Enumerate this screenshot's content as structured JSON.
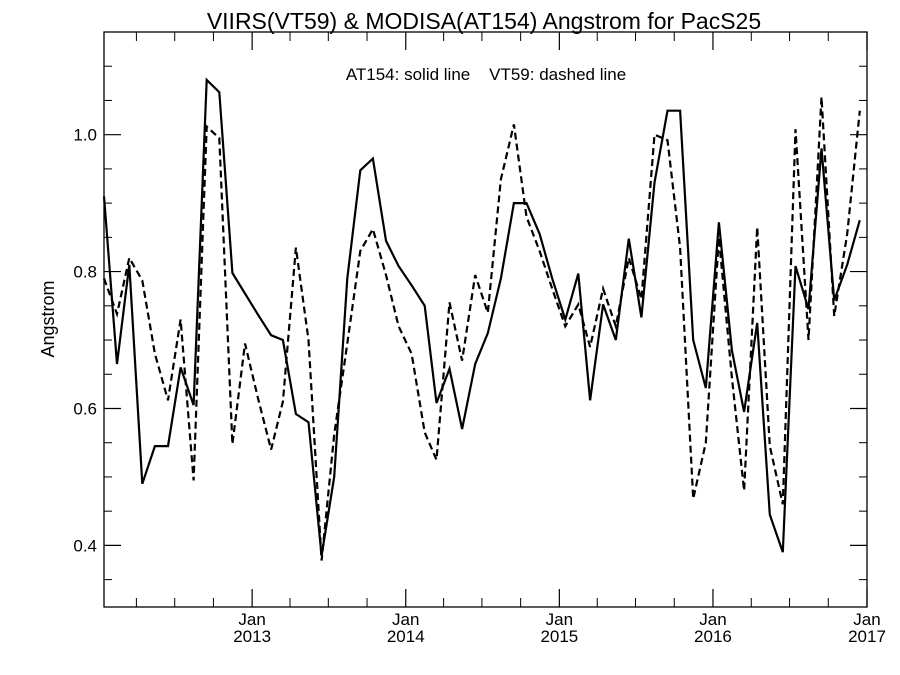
{
  "chart_data": {
    "type": "line",
    "title": "VIIRS(VT59) & MODISA(AT154)  Angstrom for PacS25",
    "annotation": "AT154: solid line    VT59: dashed line",
    "xlabel": "",
    "ylabel": "Angstrom",
    "xlim": [
      "2012-01-15",
      "2017-01-01"
    ],
    "ylim": [
      0.31,
      1.15
    ],
    "y_ticks": [
      0.4,
      0.6,
      0.8,
      1.0
    ],
    "y_tick_labels": [
      "0.4",
      "0.6",
      "0.8",
      "1.0"
    ],
    "x_ticks": [
      {
        "date": "2013-01-01",
        "line1": "Jan",
        "line2": "2013"
      },
      {
        "date": "2014-01-01",
        "line1": "Jan",
        "line2": "2014"
      },
      {
        "date": "2015-01-01",
        "line1": "Jan",
        "line2": "2015"
      },
      {
        "date": "2016-01-01",
        "line1": "Jan",
        "line2": "2016"
      },
      {
        "date": "2017-01-01",
        "line1": "Jan",
        "line2": "2017"
      }
    ],
    "grid": false,
    "series": [
      {
        "name": "AT154",
        "style": "solid",
        "color": "#000000",
        "points": [
          [
            "2012-01-15",
            0.91
          ],
          [
            "2012-02-15",
            0.665
          ],
          [
            "2012-03-15",
            0.81
          ],
          [
            "2012-04-15",
            0.49
          ],
          [
            "2012-05-15",
            0.545
          ],
          [
            "2012-06-15",
            0.545
          ],
          [
            "2012-07-15",
            0.66
          ],
          [
            "2012-08-15",
            0.605
          ],
          [
            "2012-09-15",
            1.08
          ],
          [
            "2012-10-15",
            1.062
          ],
          [
            "2012-11-15",
            0.798
          ],
          [
            "2012-12-15",
            0.768
          ],
          [
            "2013-01-15",
            0.737
          ],
          [
            "2013-02-15",
            0.707
          ],
          [
            "2013-03-15",
            0.7
          ],
          [
            "2013-04-15",
            0.592
          ],
          [
            "2013-05-15",
            0.58
          ],
          [
            "2013-06-15",
            0.385
          ],
          [
            "2013-07-15",
            0.5
          ],
          [
            "2013-08-15",
            0.79
          ],
          [
            "2013-09-15",
            0.948
          ],
          [
            "2013-10-15",
            0.965
          ],
          [
            "2013-11-15",
            0.845
          ],
          [
            "2013-12-15",
            0.808
          ],
          [
            "2014-01-15",
            0.78
          ],
          [
            "2014-02-15",
            0.75
          ],
          [
            "2014-03-15",
            0.608
          ],
          [
            "2014-04-15",
            0.658
          ],
          [
            "2014-05-15",
            0.57
          ],
          [
            "2014-06-15",
            0.665
          ],
          [
            "2014-07-15",
            0.71
          ],
          [
            "2014-08-15",
            0.79
          ],
          [
            "2014-09-15",
            0.9
          ],
          [
            "2014-10-15",
            0.9
          ],
          [
            "2014-11-15",
            0.855
          ],
          [
            "2014-12-15",
            0.79
          ],
          [
            "2015-01-15",
            0.73
          ],
          [
            "2015-02-15",
            0.797
          ],
          [
            "2015-03-15",
            0.612
          ],
          [
            "2015-04-15",
            0.752
          ],
          [
            "2015-05-15",
            0.7
          ],
          [
            "2015-06-15",
            0.848
          ],
          [
            "2015-07-15",
            0.733
          ],
          [
            "2015-08-15",
            0.93
          ],
          [
            "2015-09-15",
            1.035
          ],
          [
            "2015-10-15",
            1.035
          ],
          [
            "2015-11-15",
            0.7
          ],
          [
            "2015-12-15",
            0.63
          ],
          [
            "2016-01-15",
            0.872
          ],
          [
            "2016-02-15",
            0.685
          ],
          [
            "2016-03-15",
            0.595
          ],
          [
            "2016-04-15",
            0.725
          ],
          [
            "2016-05-15",
            0.445
          ],
          [
            "2016-06-15",
            0.39
          ],
          [
            "2016-07-15",
            0.808
          ],
          [
            "2016-08-15",
            0.745
          ],
          [
            "2016-09-15",
            0.98
          ],
          [
            "2016-10-15",
            0.758
          ],
          [
            "2016-11-15",
            0.81
          ],
          [
            "2016-12-15",
            0.875
          ]
        ]
      },
      {
        "name": "VT59",
        "style": "dashed",
        "color": "#000000",
        "points": [
          [
            "2012-01-15",
            0.79
          ],
          [
            "2012-02-15",
            0.738
          ],
          [
            "2012-03-15",
            0.82
          ],
          [
            "2012-04-15",
            0.787
          ],
          [
            "2012-05-15",
            0.68
          ],
          [
            "2012-06-15",
            0.612
          ],
          [
            "2012-07-15",
            0.73
          ],
          [
            "2012-08-15",
            0.495
          ],
          [
            "2012-09-15",
            1.012
          ],
          [
            "2012-10-15",
            0.995
          ],
          [
            "2012-11-15",
            0.548
          ],
          [
            "2012-12-15",
            0.695
          ],
          [
            "2013-01-15",
            0.615
          ],
          [
            "2013-02-15",
            0.54
          ],
          [
            "2013-03-15",
            0.61
          ],
          [
            "2013-04-15",
            0.835
          ],
          [
            "2013-05-15",
            0.7
          ],
          [
            "2013-06-15",
            0.378
          ],
          [
            "2013-07-15",
            0.562
          ],
          [
            "2013-08-15",
            0.695
          ],
          [
            "2013-09-15",
            0.83
          ],
          [
            "2013-10-15",
            0.862
          ],
          [
            "2013-11-15",
            0.795
          ],
          [
            "2013-12-15",
            0.72
          ],
          [
            "2014-01-15",
            0.68
          ],
          [
            "2014-02-15",
            0.565
          ],
          [
            "2014-03-15",
            0.525
          ],
          [
            "2014-04-15",
            0.755
          ],
          [
            "2014-05-15",
            0.67
          ],
          [
            "2014-06-15",
            0.795
          ],
          [
            "2014-07-15",
            0.74
          ],
          [
            "2014-08-15",
            0.935
          ],
          [
            "2014-09-15",
            1.015
          ],
          [
            "2014-10-15",
            0.88
          ],
          [
            "2014-11-15",
            0.83
          ],
          [
            "2014-12-15",
            0.775
          ],
          [
            "2015-01-15",
            0.72
          ],
          [
            "2015-02-15",
            0.752
          ],
          [
            "2015-03-15",
            0.69
          ],
          [
            "2015-04-15",
            0.775
          ],
          [
            "2015-05-15",
            0.72
          ],
          [
            "2015-06-15",
            0.82
          ],
          [
            "2015-07-15",
            0.76
          ],
          [
            "2015-08-15",
            1.0
          ],
          [
            "2015-09-15",
            0.992
          ],
          [
            "2015-10-15",
            0.835
          ],
          [
            "2015-11-15",
            0.468
          ],
          [
            "2015-12-15",
            0.55
          ],
          [
            "2016-01-15",
            0.85
          ],
          [
            "2016-02-15",
            0.645
          ],
          [
            "2016-03-15",
            0.48
          ],
          [
            "2016-04-15",
            0.865
          ],
          [
            "2016-05-15",
            0.545
          ],
          [
            "2016-06-15",
            0.46
          ],
          [
            "2016-07-15",
            1.008
          ],
          [
            "2016-08-15",
            0.7
          ],
          [
            "2016-09-15",
            1.055
          ],
          [
            "2016-10-15",
            0.735
          ],
          [
            "2016-11-15",
            0.855
          ],
          [
            "2016-12-15",
            1.035
          ]
        ]
      }
    ]
  }
}
